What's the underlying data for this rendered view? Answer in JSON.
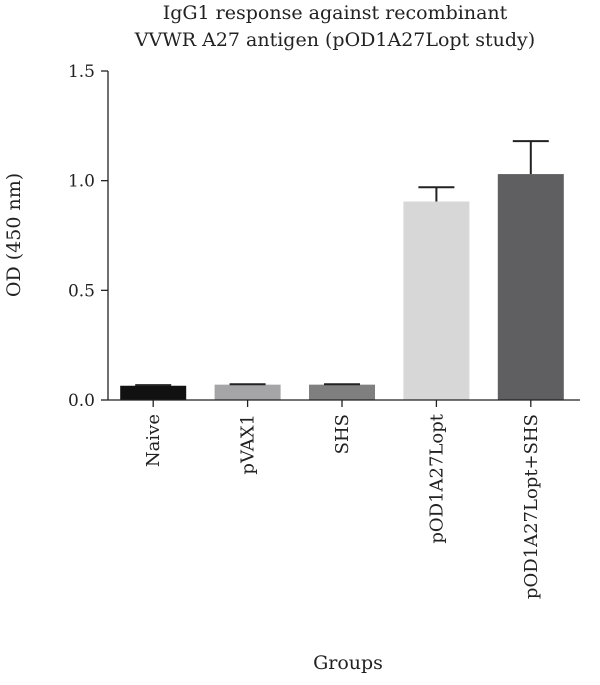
{
  "chart_data": {
    "type": "bar",
    "title_lines": [
      "IgG1 response against recombinant",
      "VVWR A27 antigen (pOD1A27Lopt study)"
    ],
    "xlabel": "Groups",
    "ylabel": "OD (450 nm)",
    "ylim": [
      0,
      1.5
    ],
    "yticks": [
      0.0,
      0.5,
      1.0,
      1.5
    ],
    "ytick_labels": [
      "0.0",
      "0.5",
      "1.0",
      "1.5"
    ],
    "categories": [
      "Naive",
      "pVAX1",
      "SHS",
      "pOD1A27Lopt",
      "pOD1A27Lopt+SHS"
    ],
    "values": [
      0.065,
      0.07,
      0.07,
      0.905,
      1.03
    ],
    "errors": [
      0.003,
      0.002,
      0.002,
      0.065,
      0.15
    ],
    "colors": [
      "#111111",
      "#a5a5a7",
      "#7f7f7f",
      "#d7d7d7",
      "#5f5f61"
    ],
    "grid": false,
    "legend": "none"
  }
}
